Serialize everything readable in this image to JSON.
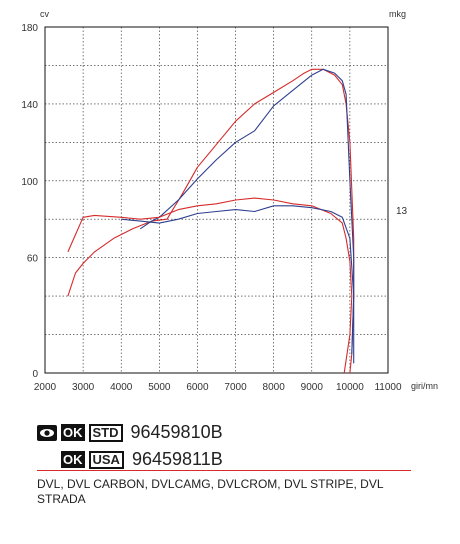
{
  "chart_data": {
    "type": "line",
    "left_axis_unit": "cv",
    "right_axis_unit": "mkg",
    "x_axis_unit": "giri/mn",
    "x_ticks": [
      2000,
      3000,
      4000,
      5000,
      6000,
      7000,
      8000,
      9000,
      10000,
      11000
    ],
    "left_ticks": [
      0,
      60,
      100,
      140,
      180
    ],
    "right_ticks": [
      13
    ],
    "xlim": [
      2000,
      11000
    ],
    "ylim": [
      0,
      180
    ],
    "grid": true,
    "series": [
      {
        "color": "#d52b2b",
        "points": [
          [
            2600,
            40
          ],
          [
            2800,
            52
          ],
          [
            3000,
            57
          ],
          [
            3300,
            63
          ],
          [
            3800,
            70
          ],
          [
            4300,
            75
          ],
          [
            4800,
            79
          ],
          [
            5200,
            80
          ],
          [
            5600,
            93
          ],
          [
            6000,
            107
          ],
          [
            6500,
            119
          ],
          [
            7000,
            131
          ],
          [
            7500,
            140
          ],
          [
            8000,
            146
          ],
          [
            8500,
            152
          ],
          [
            8800,
            156
          ],
          [
            9000,
            158
          ],
          [
            9300,
            158
          ],
          [
            9600,
            155
          ],
          [
            9800,
            150
          ],
          [
            9900,
            140
          ],
          [
            10000,
            120
          ],
          [
            10050,
            95
          ],
          [
            10100,
            70
          ],
          [
            10100,
            40
          ],
          [
            10050,
            10
          ],
          [
            10000,
            0
          ]
        ]
      },
      {
        "color": "#2e3f8f",
        "points": [
          [
            4500,
            75
          ],
          [
            4800,
            79
          ],
          [
            5000,
            81
          ],
          [
            5500,
            90
          ],
          [
            6000,
            101
          ],
          [
            6500,
            111
          ],
          [
            7000,
            120
          ],
          [
            7500,
            126
          ],
          [
            8000,
            139
          ],
          [
            8500,
            147
          ],
          [
            9000,
            155
          ],
          [
            9300,
            158
          ],
          [
            9600,
            156
          ],
          [
            9800,
            152
          ],
          [
            9900,
            145
          ],
          [
            10000,
            100
          ],
          [
            10100,
            60
          ],
          [
            10100,
            5
          ]
        ]
      },
      {
        "color": "#d52b2b",
        "points": [
          [
            2600,
            63
          ],
          [
            2800,
            72
          ],
          [
            3000,
            81
          ],
          [
            3300,
            82
          ],
          [
            4000,
            81
          ],
          [
            4500,
            80
          ],
          [
            5000,
            81
          ],
          [
            5500,
            85
          ],
          [
            6000,
            87
          ],
          [
            6500,
            88
          ],
          [
            7000,
            90
          ],
          [
            7500,
            91
          ],
          [
            8000,
            90
          ],
          [
            8500,
            88
          ],
          [
            9000,
            87
          ],
          [
            9500,
            83
          ],
          [
            9800,
            78
          ],
          [
            9900,
            70
          ],
          [
            10000,
            58
          ],
          [
            10050,
            40
          ],
          [
            10000,
            20
          ],
          [
            9850,
            0
          ]
        ]
      },
      {
        "color": "#2e3f8f",
        "points": [
          [
            4000,
            80
          ],
          [
            4500,
            79
          ],
          [
            5000,
            78
          ],
          [
            5500,
            80
          ],
          [
            6000,
            83
          ],
          [
            6500,
            84
          ],
          [
            7000,
            85
          ],
          [
            7500,
            84
          ],
          [
            8000,
            87
          ],
          [
            8500,
            87
          ],
          [
            9000,
            86
          ],
          [
            9500,
            84
          ],
          [
            9800,
            81
          ],
          [
            10000,
            70
          ],
          [
            10100,
            40
          ],
          [
            10050,
            10
          ]
        ]
      }
    ]
  },
  "codes": [
    {
      "eye_icon": true,
      "ok": "OK",
      "region": "STD",
      "part_number": "96459810B"
    },
    {
      "eye_icon": false,
      "ok": "OK",
      "region": "USA",
      "part_number": "96459811B"
    }
  ],
  "models": "DVL, DVL CARBON, DVLCAMG, DVLCROM, DVL STRIPE, DVL STRADA",
  "colors": {
    "accent": "#d52b2b",
    "blue": "#2e3f8f"
  }
}
